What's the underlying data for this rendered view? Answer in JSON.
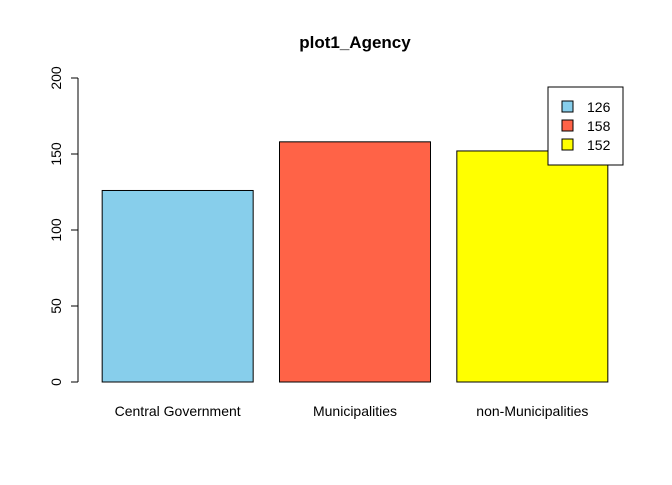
{
  "chart_data": {
    "type": "bar",
    "title": "plot1_Agency",
    "xlabel": "",
    "ylabel": "",
    "categories": [
      "Central Government",
      "Municipalities",
      "non-Municipalities"
    ],
    "values": [
      126,
      158,
      152
    ],
    "colors": [
      "#87CEEB",
      "#FF6347",
      "#FFFF00"
    ],
    "ylim": [
      0,
      200
    ],
    "yticks": [
      "0",
      "50",
      "100",
      "150",
      "200"
    ],
    "grid": false,
    "legend": {
      "position": "top-right",
      "entries": [
        "126",
        "158",
        "152"
      ]
    }
  }
}
